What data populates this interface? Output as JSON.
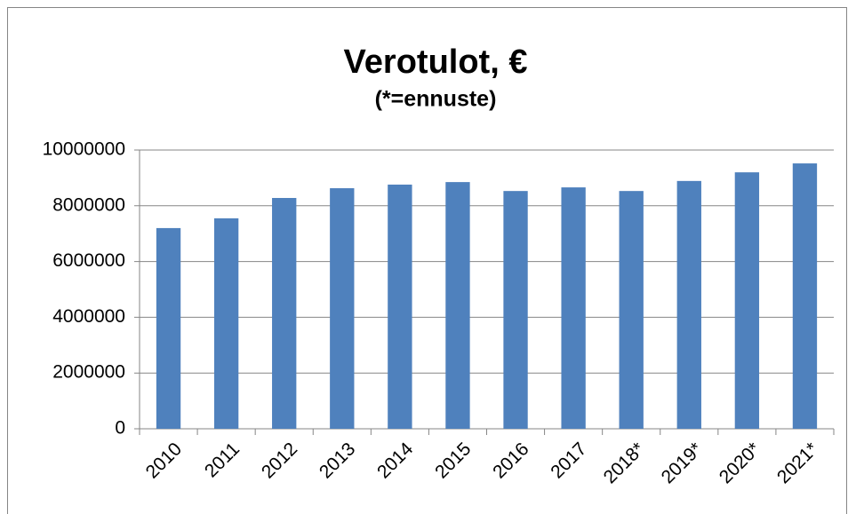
{
  "chart_data": {
    "type": "bar",
    "title": "Verotulot, €",
    "subtitle": "(*=ennuste)",
    "categories": [
      "2010",
      "2011",
      "2012",
      "2013",
      "2014",
      "2015",
      "2016",
      "2017",
      "2018*",
      "2019*",
      "2020*",
      "2021*"
    ],
    "values": [
      7200000,
      7550000,
      8280000,
      8630000,
      8760000,
      8850000,
      8530000,
      8660000,
      8530000,
      8890000,
      9200000,
      9520000
    ],
    "color": "#4f81bd",
    "ylim": [
      0,
      10000000
    ],
    "yticks": [
      0,
      2000000,
      4000000,
      6000000,
      8000000,
      10000000
    ],
    "grid": true
  }
}
